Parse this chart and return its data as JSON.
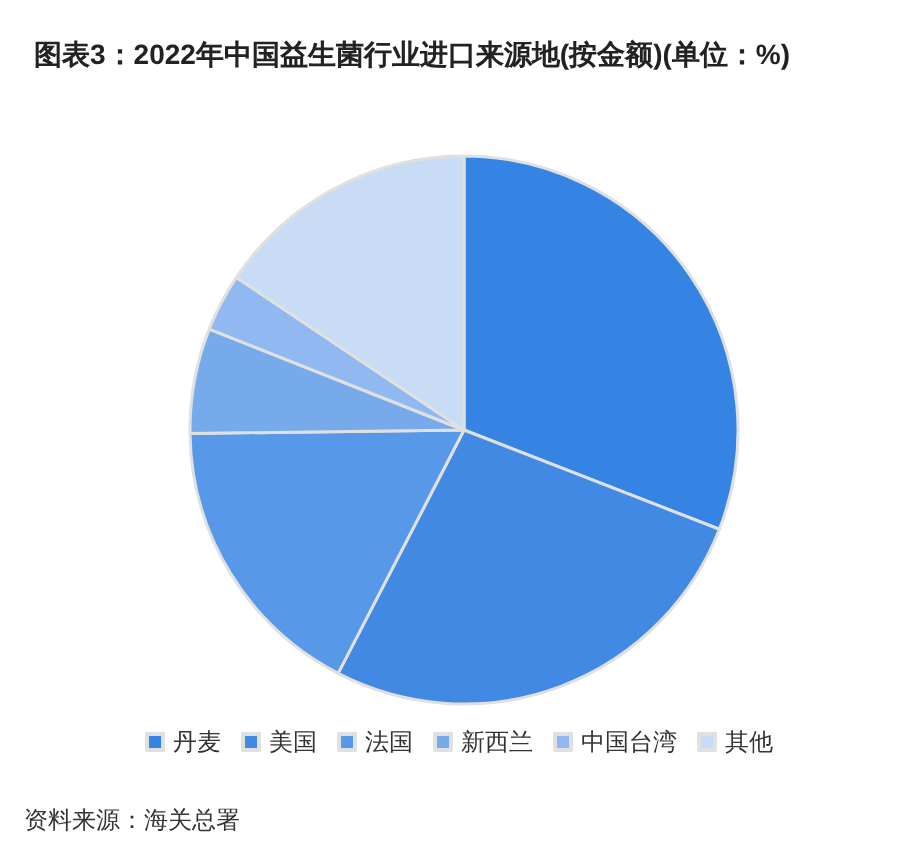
{
  "chart_data": {
    "type": "pie",
    "title": "图表3：2022年中国益生菌行业进口来源地(按金额)(单位：%)",
    "categories": [
      "丹麦",
      "美国",
      "法国",
      "新西兰",
      "中国台湾",
      "其他"
    ],
    "values": [
      30.9,
      26.7,
      17.2,
      6.2,
      3.4,
      15.6
    ],
    "colors": [
      "#3584e4",
      "#4289e3",
      "#5898e8",
      "#77aaeb",
      "#8fb9f0",
      "#c8dcf6"
    ],
    "legend": "bottom",
    "annotations": [
      "资料来源：海关总署"
    ]
  }
}
